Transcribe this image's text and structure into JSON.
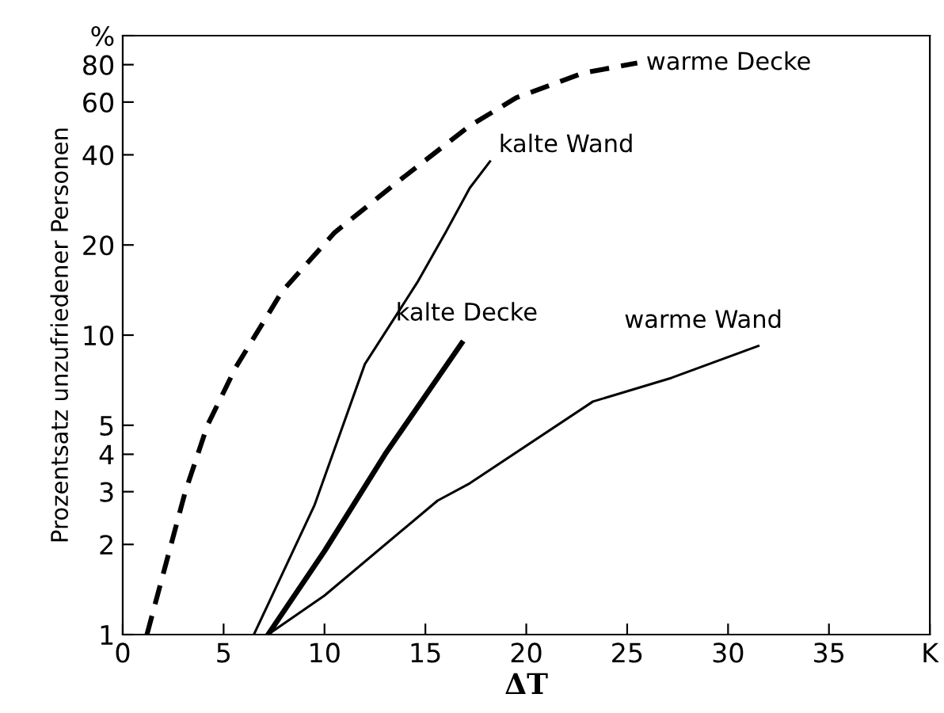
{
  "chart_data": {
    "type": "line",
    "xlabel": "ΔT",
    "ylabel": "Prozentsatz unzufriedener Personen",
    "log": "y",
    "grid": false,
    "xlim": [
      0,
      40
    ],
    "xticks": [
      0,
      5,
      10,
      15,
      20,
      25,
      30,
      35,
      {
        "value": 40,
        "label": "K"
      }
    ],
    "ylim": [
      1,
      100
    ],
    "yticks": [
      1,
      2,
      3,
      4,
      5,
      10,
      20,
      40,
      60,
      80,
      {
        "value": 100,
        "label": "%"
      }
    ],
    "series": [
      {
        "name": "warme Decke",
        "color": "#000000",
        "line_style": "dashed",
        "x": [
          1.2,
          3.1,
          4.2,
          5.6,
          7.9,
          10.5,
          13.5,
          17.2,
          19.5,
          22.8,
          25.5
        ],
        "values": [
          1,
          3,
          5,
          7.8,
          14,
          22,
          32,
          50,
          62,
          75,
          81
        ]
      },
      {
        "name": "kalte Wand",
        "color": "#000000",
        "line_style": "solid",
        "x": [
          6.5,
          9.5,
          12,
          14.6,
          16,
          17.2,
          18.2
        ],
        "values": [
          1,
          2.7,
          8,
          15,
          22,
          31,
          38
        ]
      },
      {
        "name": "kalte Decke",
        "color": "#000000",
        "line_style": "solid",
        "x": [
          7.2,
          10,
          13,
          16.8
        ],
        "values": [
          1,
          1.9,
          4,
          9.4
        ]
      },
      {
        "name": "warme Wand",
        "color": "#000000",
        "line_style": "solid",
        "x": [
          7.2,
          10,
          15.6,
          17.2,
          23.3,
          27.2,
          31.5
        ],
        "values": [
          1,
          1.35,
          2.8,
          3.2,
          6,
          7.2,
          9.2
        ]
      }
    ]
  }
}
